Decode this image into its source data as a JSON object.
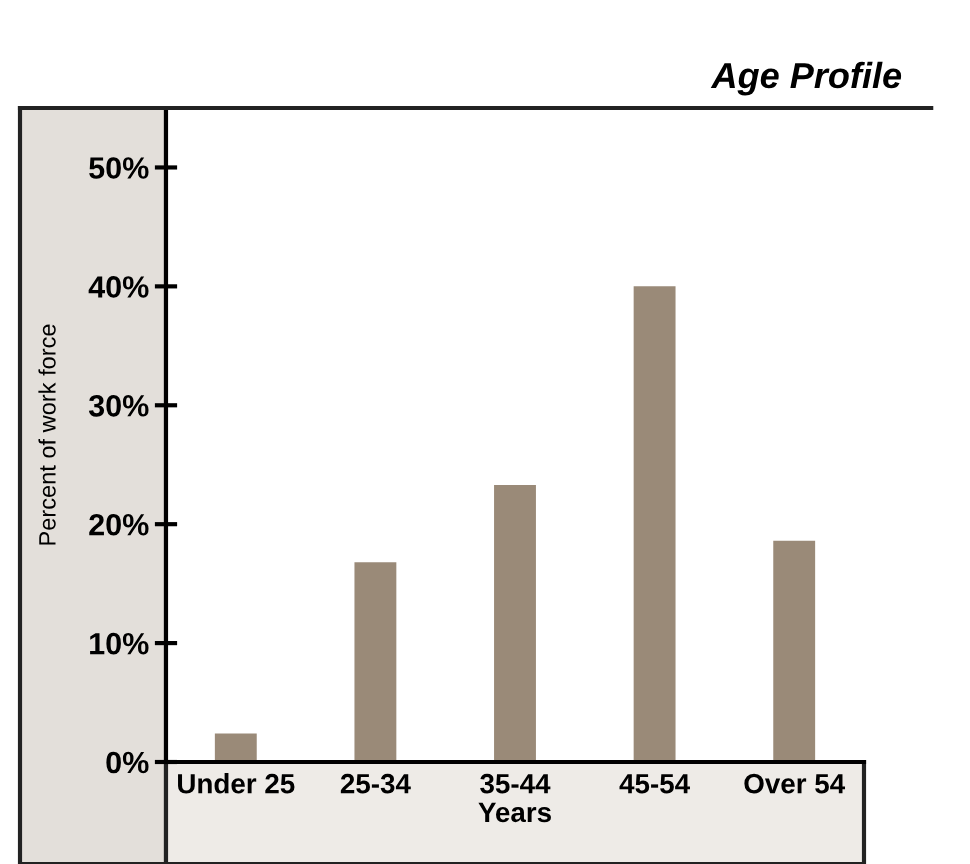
{
  "chart_data": {
    "type": "bar",
    "title": "Age Profile",
    "xlabel": "Years",
    "ylabel": "Percent of work force",
    "categories": [
      "Under 25",
      "25-34",
      "35-44",
      "45-54",
      "Over 54"
    ],
    "values": [
      2.4,
      16.8,
      23.3,
      40,
      18.6
    ],
    "color": "#9a8a78",
    "ylim": [
      0,
      55
    ],
    "yticks": [
      {
        "value": 0,
        "label": "0%"
      },
      {
        "value": 10,
        "label": "10%"
      },
      {
        "value": 20,
        "label": "20%"
      },
      {
        "value": 30,
        "label": "30%"
      },
      {
        "value": 40,
        "label": "40%"
      },
      {
        "value": 50,
        "label": "50%"
      }
    ],
    "grid": false
  }
}
